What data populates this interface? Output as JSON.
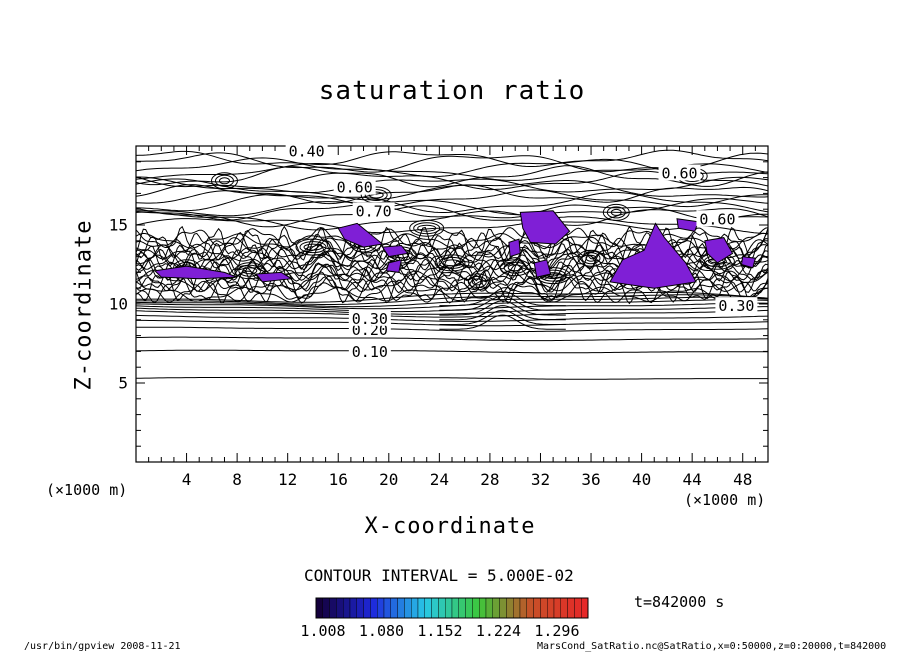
{
  "chart_data": {
    "type": "contour",
    "title": "saturation ratio",
    "xlabel": "X-coordinate",
    "ylabel": "Z-coordinate",
    "x_unit": "(×1000 m)",
    "xlim": [
      0,
      50
    ],
    "ylim": [
      0,
      20
    ],
    "xticks": [
      "4",
      "8",
      "12",
      "16",
      "20",
      "24",
      "28",
      "32",
      "36",
      "40",
      "44",
      "48"
    ],
    "yticks": [
      "5",
      "10",
      "15"
    ],
    "contour_labels": [
      "0.10",
      "0.20",
      "0.30",
      "0.30",
      "0.60",
      "0.60",
      "0.60",
      "0.40",
      "0.70"
    ],
    "contour_interval_text": "CONTOUR INTERVAL = 5.000E-02",
    "time_text": "t=842000 s",
    "colorbar": {
      "ticks": [
        "1.008",
        "1.080",
        "1.152",
        "1.224",
        "1.296"
      ],
      "range": [
        1.008,
        1.296
      ],
      "shaded_color": "#7f1fd6"
    },
    "grid": false
  },
  "footer": {
    "left": "/usr/bin/gpview   2008-11-21",
    "right": "MarsCond_SatRatio.nc@SatRatio,x=0:50000,z=0:20000,t=842000"
  }
}
